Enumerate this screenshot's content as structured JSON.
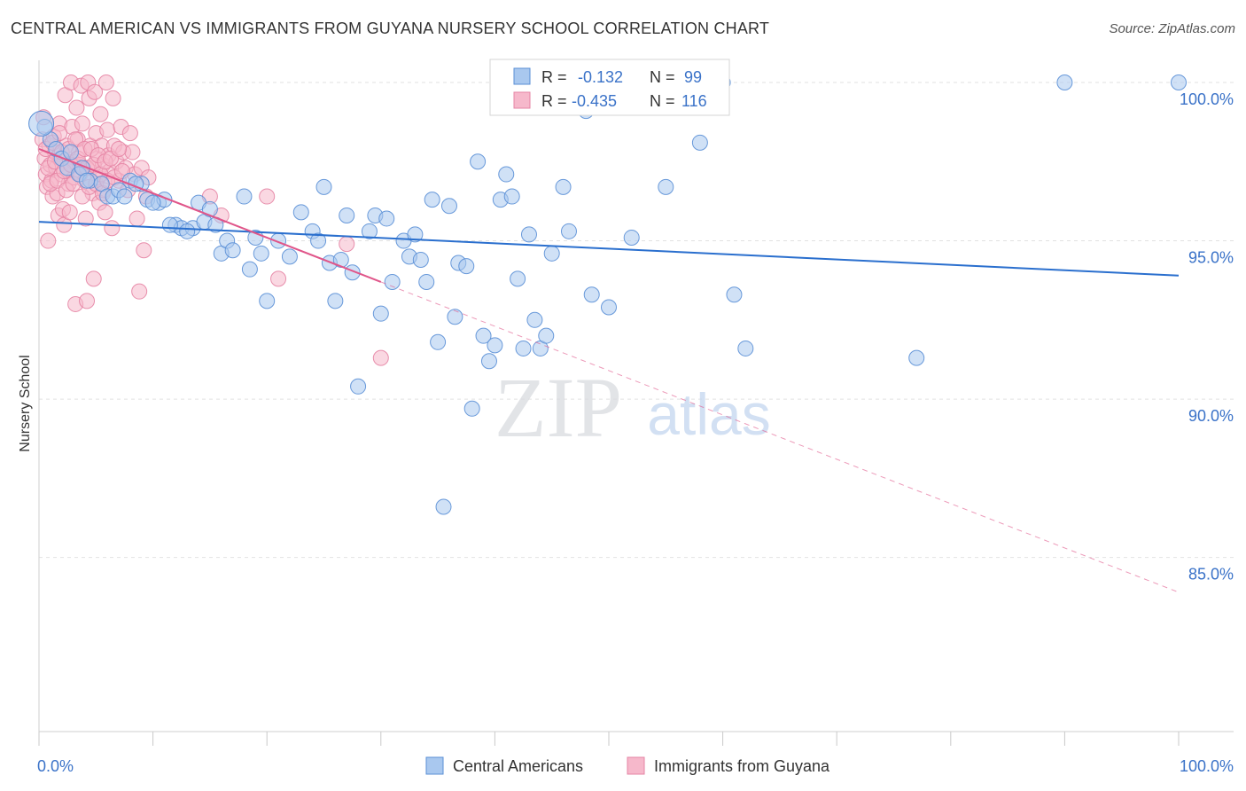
{
  "header": {
    "title": "CENTRAL AMERICAN VS IMMIGRANTS FROM GUYANA NURSERY SCHOOL CORRELATION CHART",
    "source": "Source: ZipAtlas.com"
  },
  "watermark": {
    "zip": "ZIP",
    "atlas": "atlas"
  },
  "colors": {
    "blue_fill": "#a9c8ef",
    "blue_stroke": "#5a8fd6",
    "blue_line": "#2a6fce",
    "pink_fill": "#f6b8cb",
    "pink_stroke": "#e584a4",
    "pink_line": "#e0568a",
    "axis_text": "#3a72c8"
  },
  "legend": {
    "r_label": "R =",
    "n_label": "N =",
    "rows": [
      {
        "series": "Central Americans",
        "r": "-0.132",
        "n": "99"
      },
      {
        "series": "Immigrants from Guyana",
        "r": "-0.435",
        "n": "116"
      }
    ]
  },
  "chart_data": {
    "type": "scatter",
    "title": "CENTRAL AMERICAN VS IMMIGRANTS FROM GUYANA NURSERY SCHOOL CORRELATION CHART",
    "ylabel": "Nursery School",
    "xlabel": "",
    "x_ticklabels": [
      "0.0%",
      "100.0%"
    ],
    "y_ticks": [
      85.0,
      90.0,
      95.0,
      100.0
    ],
    "y_ticklabels": [
      "85.0%",
      "90.0%",
      "95.0%",
      "100.0%"
    ],
    "xlim": [
      0,
      100
    ],
    "ylim": [
      79.5,
      100.7
    ],
    "grid": true,
    "legend_position": "top-center",
    "series": [
      {
        "name": "Central Americans",
        "color": "#a9c8ef",
        "trend": {
          "x": [
            0,
            100
          ],
          "y": [
            95.6,
            93.9
          ],
          "style": "solid"
        },
        "points": [
          [
            0.5,
            98.6
          ],
          [
            1.0,
            98.2
          ],
          [
            1.5,
            97.9
          ],
          [
            2.0,
            97.6
          ],
          [
            2.5,
            97.3
          ],
          [
            3.5,
            97.1
          ],
          [
            4.5,
            96.9
          ],
          [
            5.5,
            96.8
          ],
          [
            6.0,
            96.4
          ],
          [
            6.5,
            96.4
          ],
          [
            8.0,
            96.9
          ],
          [
            9.0,
            96.8
          ],
          [
            9.5,
            96.3
          ],
          [
            10.5,
            96.2
          ],
          [
            11.0,
            96.3
          ],
          [
            12.0,
            95.5
          ],
          [
            12.5,
            95.4
          ],
          [
            13.5,
            95.4
          ],
          [
            14.0,
            96.2
          ],
          [
            14.5,
            95.6
          ],
          [
            15.0,
            96.0
          ],
          [
            15.5,
            95.5
          ],
          [
            16.0,
            94.6
          ],
          [
            16.5,
            95.0
          ],
          [
            17.0,
            94.7
          ],
          [
            18.0,
            96.4
          ],
          [
            18.5,
            94.1
          ],
          [
            19.0,
            95.1
          ],
          [
            19.5,
            94.6
          ],
          [
            20.0,
            93.1
          ],
          [
            21.0,
            95.0
          ],
          [
            22.0,
            94.5
          ],
          [
            23.0,
            95.9
          ],
          [
            24.0,
            95.3
          ],
          [
            24.5,
            95.0
          ],
          [
            25.0,
            96.7
          ],
          [
            25.5,
            94.3
          ],
          [
            26.0,
            93.1
          ],
          [
            26.5,
            94.4
          ],
          [
            27.0,
            95.8
          ],
          [
            27.5,
            94.0
          ],
          [
            28.0,
            90.4
          ],
          [
            29.0,
            95.3
          ],
          [
            29.5,
            95.8
          ],
          [
            30.0,
            92.7
          ],
          [
            30.5,
            95.7
          ],
          [
            31.0,
            93.7
          ],
          [
            32.0,
            95.0
          ],
          [
            32.5,
            94.5
          ],
          [
            33.0,
            95.2
          ],
          [
            33.5,
            94.4
          ],
          [
            34.0,
            93.7
          ],
          [
            34.5,
            96.3
          ],
          [
            35.0,
            91.8
          ],
          [
            35.5,
            86.6
          ],
          [
            36.0,
            96.1
          ],
          [
            36.5,
            92.6
          ],
          [
            36.8,
            94.3
          ],
          [
            37.5,
            94.2
          ],
          [
            38.0,
            89.7
          ],
          [
            38.5,
            97.5
          ],
          [
            39.0,
            92.0
          ],
          [
            39.5,
            91.2
          ],
          [
            40.0,
            91.7
          ],
          [
            40.5,
            96.3
          ],
          [
            41.0,
            97.1
          ],
          [
            41.5,
            96.4
          ],
          [
            42.0,
            93.8
          ],
          [
            42.5,
            91.6
          ],
          [
            43.0,
            95.2
          ],
          [
            43.5,
            92.5
          ],
          [
            44.0,
            91.6
          ],
          [
            44.5,
            92.0
          ],
          [
            45.0,
            94.6
          ],
          [
            46.0,
            96.7
          ],
          [
            46.5,
            95.3
          ],
          [
            47.5,
            100.0
          ],
          [
            48.0,
            99.1
          ],
          [
            48.5,
            93.3
          ],
          [
            50.0,
            92.9
          ],
          [
            52.0,
            95.1
          ],
          [
            53.0,
            100.1
          ],
          [
            55.0,
            96.7
          ],
          [
            58.0,
            98.1
          ],
          [
            60.0,
            100.0
          ],
          [
            61.0,
            93.3
          ],
          [
            62.0,
            91.6
          ],
          [
            77.0,
            91.3
          ],
          [
            90.0,
            100.0
          ],
          [
            100.0,
            100.0
          ],
          [
            2.8,
            97.8
          ],
          [
            3.8,
            97.3
          ],
          [
            4.2,
            96.9
          ],
          [
            7.0,
            96.6
          ],
          [
            7.5,
            96.4
          ],
          [
            8.5,
            96.8
          ],
          [
            10.0,
            96.2
          ],
          [
            11.5,
            95.5
          ],
          [
            13.0,
            95.3
          ]
        ]
      },
      {
        "name": "Immigrants from Guyana",
        "color": "#f6b8cb",
        "trend": {
          "x": [
            0,
            30
          ],
          "y": [
            97.9,
            93.7
          ],
          "style": "solid",
          "extension": {
            "x": [
              30,
              100
            ],
            "y": [
              93.7,
              83.9
            ],
            "style": "dashed"
          }
        },
        "points": [
          [
            0.3,
            98.2
          ],
          [
            0.5,
            97.6
          ],
          [
            0.6,
            97.1
          ],
          [
            0.7,
            96.7
          ],
          [
            0.8,
            95.0
          ],
          [
            0.9,
            98.0
          ],
          [
            1.0,
            97.4
          ],
          [
            1.1,
            96.9
          ],
          [
            1.2,
            96.4
          ],
          [
            1.3,
            98.3
          ],
          [
            1.4,
            97.8
          ],
          [
            1.5,
            97.3
          ],
          [
            1.6,
            96.5
          ],
          [
            1.7,
            95.8
          ],
          [
            1.8,
            98.7
          ],
          [
            1.9,
            97.6
          ],
          [
            2.0,
            97.1
          ],
          [
            2.1,
            96.0
          ],
          [
            2.2,
            95.5
          ],
          [
            2.3,
            99.6
          ],
          [
            2.4,
            98.0
          ],
          [
            2.5,
            97.2
          ],
          [
            2.6,
            96.8
          ],
          [
            2.7,
            95.9
          ],
          [
            2.8,
            100.0
          ],
          [
            2.9,
            98.6
          ],
          [
            3.0,
            97.5
          ],
          [
            3.1,
            97.0
          ],
          [
            3.2,
            93.0
          ],
          [
            3.3,
            99.2
          ],
          [
            3.4,
            98.2
          ],
          [
            3.5,
            97.8
          ],
          [
            3.6,
            97.4
          ],
          [
            3.7,
            99.9
          ],
          [
            3.8,
            98.7
          ],
          [
            3.9,
            97.3
          ],
          [
            4.0,
            96.9
          ],
          [
            4.1,
            95.7
          ],
          [
            4.2,
            93.1
          ],
          [
            4.3,
            100.0
          ],
          [
            4.4,
            99.5
          ],
          [
            4.5,
            98.0
          ],
          [
            4.6,
            97.3
          ],
          [
            4.7,
            96.5
          ],
          [
            4.8,
            93.8
          ],
          [
            4.9,
            99.7
          ],
          [
            5.0,
            98.4
          ],
          [
            5.1,
            97.6
          ],
          [
            5.2,
            97.0
          ],
          [
            5.3,
            96.2
          ],
          [
            5.4,
            99.0
          ],
          [
            5.5,
            98.0
          ],
          [
            5.6,
            97.4
          ],
          [
            5.7,
            96.6
          ],
          [
            5.8,
            95.9
          ],
          [
            5.9,
            100.0
          ],
          [
            6.0,
            98.5
          ],
          [
            6.1,
            97.7
          ],
          [
            6.2,
            97.2
          ],
          [
            6.4,
            95.4
          ],
          [
            6.5,
            99.5
          ],
          [
            6.6,
            98.0
          ],
          [
            6.8,
            97.5
          ],
          [
            7.0,
            96.9
          ],
          [
            7.2,
            98.6
          ],
          [
            7.4,
            97.8
          ],
          [
            7.6,
            97.3
          ],
          [
            7.8,
            96.6
          ],
          [
            8.0,
            98.4
          ],
          [
            8.2,
            97.8
          ],
          [
            8.4,
            97.1
          ],
          [
            8.6,
            95.7
          ],
          [
            8.8,
            93.4
          ],
          [
            9.0,
            97.3
          ],
          [
            9.2,
            94.7
          ],
          [
            9.4,
            96.4
          ],
          [
            9.6,
            97.0
          ],
          [
            15.0,
            96.4
          ],
          [
            16.0,
            95.8
          ],
          [
            20.0,
            96.4
          ],
          [
            21.0,
            93.8
          ],
          [
            27.0,
            94.9
          ],
          [
            30.0,
            91.3
          ],
          [
            0.4,
            98.9
          ],
          [
            0.6,
            97.9
          ],
          [
            0.8,
            97.3
          ],
          [
            1.0,
            96.8
          ],
          [
            1.2,
            98.1
          ],
          [
            1.4,
            97.5
          ],
          [
            1.6,
            96.9
          ],
          [
            1.8,
            98.4
          ],
          [
            2.0,
            97.8
          ],
          [
            2.2,
            97.2
          ],
          [
            2.4,
            96.6
          ],
          [
            2.6,
            97.9
          ],
          [
            2.8,
            97.4
          ],
          [
            3.0,
            96.8
          ],
          [
            3.2,
            98.2
          ],
          [
            3.4,
            97.6
          ],
          [
            3.6,
            97.1
          ],
          [
            3.8,
            96.4
          ],
          [
            4.0,
            97.9
          ],
          [
            4.2,
            97.3
          ],
          [
            4.4,
            96.7
          ],
          [
            4.6,
            97.9
          ],
          [
            4.8,
            97.4
          ],
          [
            5.0,
            96.8
          ],
          [
            5.2,
            97.7
          ],
          [
            5.4,
            97.1
          ],
          [
            5.6,
            96.5
          ],
          [
            5.8,
            97.5
          ],
          [
            6.0,
            96.9
          ],
          [
            6.3,
            97.6
          ],
          [
            6.6,
            97.0
          ],
          [
            7.0,
            97.9
          ],
          [
            7.3,
            97.2
          ]
        ]
      }
    ]
  }
}
